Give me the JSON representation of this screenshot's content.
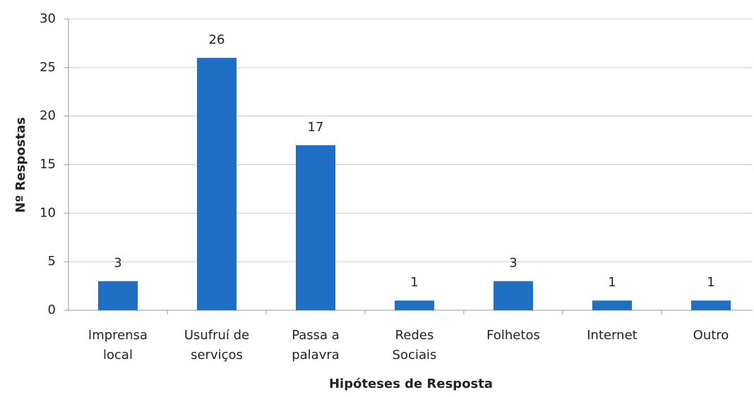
{
  "chart_data": {
    "type": "bar",
    "x_label": "Hipóteses de Resposta",
    "y_label": "Nº Respostas",
    "categories": [
      "Imprensa local",
      "Usufruí de serviços",
      "Passa a palavra",
      "Redes Sociais",
      "Folhetos",
      "Internet",
      "Outro"
    ],
    "values": [
      3,
      26,
      17,
      1,
      3,
      1,
      1
    ],
    "color": "#1f6fc5",
    "ylim": [
      0,
      30
    ],
    "yticks": [
      0,
      5,
      10,
      15,
      20,
      25,
      30
    ],
    "grid": true
  }
}
